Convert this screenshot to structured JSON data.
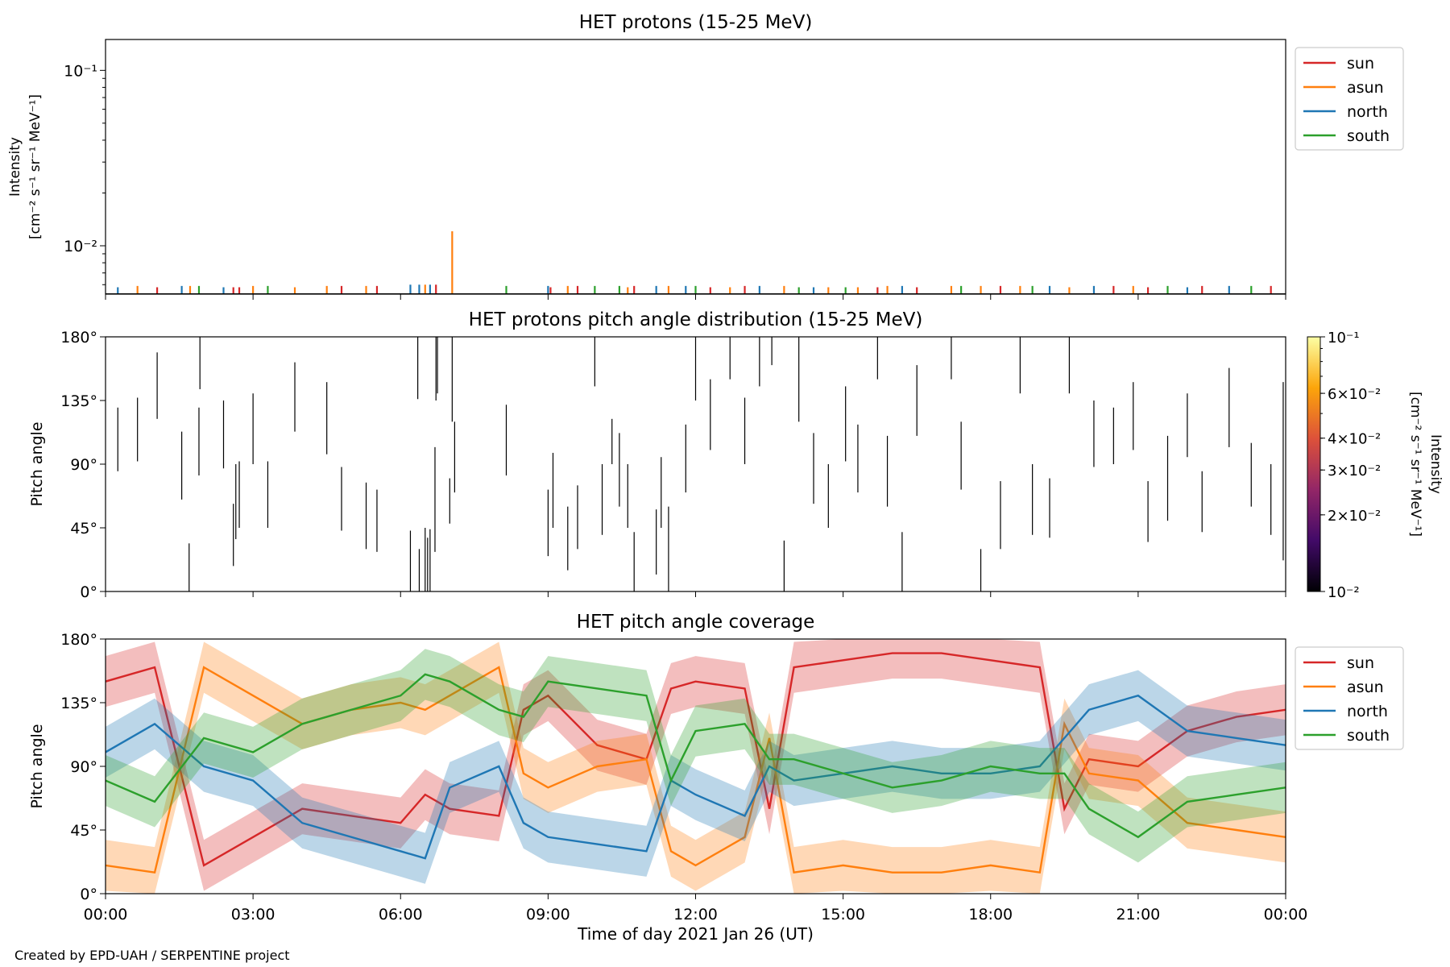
{
  "footer": "Created by EPD-UAH / SERPENTINE project",
  "colors": {
    "sun": "#d62728",
    "asun": "#ff7f0e",
    "north": "#1f77b4",
    "south": "#2ca02c"
  },
  "xaxis": {
    "label": "Time of day 2021 Jan 26 (UT)",
    "tick_labels": [
      "00:00",
      "03:00",
      "06:00",
      "09:00",
      "12:00",
      "15:00",
      "18:00",
      "21:00",
      "00:00"
    ],
    "range_hours": [
      0,
      24
    ]
  },
  "chart_data": [
    {
      "type": "line",
      "title": "HET protons (15-25 MeV)",
      "ylabel_lines": [
        "Intensity",
        "[cm⁻² s⁻¹ sr⁻¹ MeV⁻¹]"
      ],
      "yscale": "log",
      "ylim": [
        0.0053,
        0.15
      ],
      "ytick_labels": [
        {
          "value": 0.1,
          "label": "10⁻¹"
        },
        {
          "value": 0.01,
          "label": "10⁻²"
        }
      ],
      "legend": [
        "sun",
        "asun",
        "north",
        "south"
      ],
      "legend_position": "outside-right-top",
      "baseline": 0.0053,
      "spikes": [
        {
          "series": "north",
          "t": 0.25,
          "v": 0.0058
        },
        {
          "series": "asun",
          "t": 0.65,
          "v": 0.0059
        },
        {
          "series": "red",
          "t": 1.05,
          "v": 0.0058
        },
        {
          "series": "north",
          "t": 1.55,
          "v": 0.0059
        },
        {
          "series": "asun",
          "t": 1.72,
          "v": 0.0059
        },
        {
          "series": "south",
          "t": 1.9,
          "v": 0.0059
        },
        {
          "series": "north",
          "t": 2.4,
          "v": 0.0058
        },
        {
          "series": "sun",
          "t": 2.6,
          "v": 0.0058
        },
        {
          "series": "sun",
          "t": 2.72,
          "v": 0.0058
        },
        {
          "series": "asun",
          "t": 3.0,
          "v": 0.0059
        },
        {
          "series": "south",
          "t": 3.3,
          "v": 0.0059
        },
        {
          "series": "asun",
          "t": 3.85,
          "v": 0.0058
        },
        {
          "series": "asun",
          "t": 4.5,
          "v": 0.0059
        },
        {
          "series": "sun",
          "t": 4.8,
          "v": 0.0059
        },
        {
          "series": "asun",
          "t": 5.3,
          "v": 0.0059
        },
        {
          "series": "sun",
          "t": 5.52,
          "v": 0.0059
        },
        {
          "series": "north",
          "t": 6.2,
          "v": 0.006
        },
        {
          "series": "north",
          "t": 6.38,
          "v": 0.006
        },
        {
          "series": "asun",
          "t": 6.5,
          "v": 0.006
        },
        {
          "series": "north",
          "t": 6.6,
          "v": 0.006
        },
        {
          "series": "sun",
          "t": 6.72,
          "v": 0.006
        },
        {
          "series": "asun",
          "t": 7.05,
          "v": 0.0121
        },
        {
          "series": "south",
          "t": 8.15,
          "v": 0.0059
        },
        {
          "series": "north",
          "t": 9.0,
          "v": 0.0059
        },
        {
          "series": "sun",
          "t": 9.05,
          "v": 0.0058
        },
        {
          "series": "asun",
          "t": 9.4,
          "v": 0.0059
        },
        {
          "series": "sun",
          "t": 9.6,
          "v": 0.0059
        },
        {
          "series": "south",
          "t": 9.95,
          "v": 0.0059
        },
        {
          "series": "south",
          "t": 10.45,
          "v": 0.0059
        },
        {
          "series": "asun",
          "t": 10.62,
          "v": 0.0058
        },
        {
          "series": "sun",
          "t": 10.75,
          "v": 0.0059
        },
        {
          "series": "north",
          "t": 11.2,
          "v": 0.0059
        },
        {
          "series": "asun",
          "t": 11.45,
          "v": 0.0059
        },
        {
          "series": "north",
          "t": 11.8,
          "v": 0.0059
        },
        {
          "series": "south",
          "t": 12.0,
          "v": 0.0059
        },
        {
          "series": "sun",
          "t": 12.3,
          "v": 0.0058
        },
        {
          "series": "asun",
          "t": 12.7,
          "v": 0.0058
        },
        {
          "series": "sun",
          "t": 13.0,
          "v": 0.0059
        },
        {
          "series": "north",
          "t": 13.3,
          "v": 0.0059
        },
        {
          "series": "asun",
          "t": 13.8,
          "v": 0.0059
        },
        {
          "series": "south",
          "t": 14.1,
          "v": 0.0058
        },
        {
          "series": "north",
          "t": 14.4,
          "v": 0.0058
        },
        {
          "series": "asun",
          "t": 14.7,
          "v": 0.0058
        },
        {
          "series": "south",
          "t": 15.05,
          "v": 0.0058
        },
        {
          "series": "asun",
          "t": 15.3,
          "v": 0.0058
        },
        {
          "series": "sun",
          "t": 15.7,
          "v": 0.0058
        },
        {
          "series": "asun",
          "t": 15.9,
          "v": 0.0059
        },
        {
          "series": "north",
          "t": 16.2,
          "v": 0.0059
        },
        {
          "series": "sun",
          "t": 16.5,
          "v": 0.0058
        },
        {
          "series": "asun",
          "t": 17.2,
          "v": 0.0059
        },
        {
          "series": "south",
          "t": 17.4,
          "v": 0.0059
        },
        {
          "series": "asun",
          "t": 17.8,
          "v": 0.0059
        },
        {
          "series": "sun",
          "t": 18.2,
          "v": 0.0059
        },
        {
          "series": "asun",
          "t": 18.6,
          "v": 0.0059
        },
        {
          "series": "south",
          "t": 18.85,
          "v": 0.0059
        },
        {
          "series": "north",
          "t": 19.2,
          "v": 0.0059
        },
        {
          "series": "asun",
          "t": 19.6,
          "v": 0.0058
        },
        {
          "series": "north",
          "t": 20.1,
          "v": 0.0059
        },
        {
          "series": "sun",
          "t": 20.5,
          "v": 0.0059
        },
        {
          "series": "asun",
          "t": 20.9,
          "v": 0.0059
        },
        {
          "series": "sun",
          "t": 21.2,
          "v": 0.0058
        },
        {
          "series": "south",
          "t": 21.6,
          "v": 0.0059
        },
        {
          "series": "north",
          "t": 22.0,
          "v": 0.0058
        },
        {
          "series": "sun",
          "t": 22.3,
          "v": 0.0059
        },
        {
          "series": "north",
          "t": 22.85,
          "v": 0.0059
        },
        {
          "series": "south",
          "t": 23.3,
          "v": 0.0059
        },
        {
          "series": "sun",
          "t": 23.7,
          "v": 0.0059
        }
      ]
    },
    {
      "type": "heatmap",
      "title": "HET protons pitch angle distribution (15-25 MeV)",
      "ylabel": "Pitch angle",
      "ylim": [
        0,
        180
      ],
      "ytick_labels": [
        "0°",
        "45°",
        "90°",
        "135°",
        "180°"
      ],
      "colorbar": {
        "label_lines": [
          "Intensity",
          "[cm⁻² s⁻¹ sr⁻¹ MeV⁻¹]"
        ],
        "scale": "log",
        "range": [
          0.01,
          0.1
        ],
        "tick_labels": [
          {
            "value": 0.1,
            "label": "10⁻¹"
          },
          {
            "value": 0.06,
            "label": "6×10⁻²"
          },
          {
            "value": 0.04,
            "label": "4×10⁻²"
          },
          {
            "value": 0.03,
            "label": "3×10⁻²"
          },
          {
            "value": 0.02,
            "label": "2×10⁻²"
          },
          {
            "value": 0.01,
            "label": "10⁻²"
          }
        ]
      },
      "segments": [
        [
          0.25,
          85,
          130
        ],
        [
          0.65,
          92,
          137
        ],
        [
          1.05,
          122,
          169
        ],
        [
          1.7,
          0,
          34
        ],
        [
          1.55,
          65,
          113
        ],
        [
          1.9,
          82,
          130
        ],
        [
          1.92,
          143,
          180
        ],
        [
          2.4,
          87,
          135
        ],
        [
          2.6,
          18,
          62
        ],
        [
          2.65,
          37,
          90
        ],
        [
          2.72,
          45,
          92
        ],
        [
          3.0,
          90,
          140
        ],
        [
          3.3,
          45,
          92
        ],
        [
          3.85,
          113,
          162
        ],
        [
          4.5,
          97,
          148
        ],
        [
          4.8,
          43,
          88
        ],
        [
          5.3,
          30,
          77
        ],
        [
          5.52,
          28,
          72
        ],
        [
          6.2,
          0,
          43
        ],
        [
          6.35,
          136,
          180
        ],
        [
          6.38,
          0,
          30
        ],
        [
          6.5,
          0,
          45
        ],
        [
          6.55,
          0,
          38
        ],
        [
          6.6,
          0,
          44
        ],
        [
          6.72,
          135,
          180
        ],
        [
          6.7,
          28,
          102
        ],
        [
          6.75,
          140,
          180
        ],
        [
          7.05,
          120,
          180
        ],
        [
          7.1,
          70,
          120
        ],
        [
          7.0,
          48,
          80
        ],
        [
          8.15,
          82,
          132
        ],
        [
          9.0,
          25,
          72
        ],
        [
          9.1,
          45,
          98
        ],
        [
          9.4,
          15,
          60
        ],
        [
          9.6,
          30,
          75
        ],
        [
          9.95,
          145,
          180
        ],
        [
          10.1,
          40,
          90
        ],
        [
          10.3,
          90,
          122
        ],
        [
          10.45,
          60,
          112
        ],
        [
          10.62,
          45,
          90
        ],
        [
          10.75,
          0,
          42
        ],
        [
          11.2,
          12,
          58
        ],
        [
          11.3,
          45,
          95
        ],
        [
          11.45,
          0,
          60
        ],
        [
          11.8,
          70,
          118
        ],
        [
          12.0,
          135,
          180
        ],
        [
          12.3,
          100,
          150
        ],
        [
          12.7,
          150,
          180
        ],
        [
          13.0,
          90,
          137
        ],
        [
          13.3,
          145,
          180
        ],
        [
          13.55,
          160,
          180
        ],
        [
          13.8,
          0,
          36
        ],
        [
          14.1,
          120,
          180
        ],
        [
          14.4,
          62,
          112
        ],
        [
          14.7,
          45,
          90
        ],
        [
          15.05,
          92,
          145
        ],
        [
          15.3,
          70,
          118
        ],
        [
          15.7,
          150,
          180
        ],
        [
          15.9,
          60,
          110
        ],
        [
          16.2,
          0,
          42
        ],
        [
          16.5,
          110,
          160
        ],
        [
          17.2,
          150,
          180
        ],
        [
          17.4,
          72,
          120
        ],
        [
          17.8,
          0,
          30
        ],
        [
          18.2,
          30,
          78
        ],
        [
          18.6,
          140,
          180
        ],
        [
          18.85,
          40,
          90
        ],
        [
          19.2,
          38,
          80
        ],
        [
          19.6,
          140,
          180
        ],
        [
          20.1,
          88,
          135
        ],
        [
          20.5,
          90,
          130
        ],
        [
          20.9,
          100,
          148
        ],
        [
          21.2,
          35,
          78
        ],
        [
          21.6,
          50,
          110
        ],
        [
          22.0,
          95,
          140
        ],
        [
          22.3,
          42,
          85
        ],
        [
          22.85,
          102,
          158
        ],
        [
          23.3,
          60,
          105
        ],
        [
          23.7,
          40,
          90
        ],
        [
          23.95,
          22,
          148
        ]
      ]
    },
    {
      "type": "area",
      "title": "HET pitch angle coverage",
      "ylabel": "Pitch angle",
      "ylim": [
        0,
        180
      ],
      "ytick_labels": [
        "0°",
        "45°",
        "90°",
        "135°",
        "180°"
      ],
      "legend": [
        "sun",
        "asun",
        "north",
        "south"
      ],
      "legend_position": "outside-right-top",
      "band_halfwidth_deg": 18,
      "x_hours": [
        0,
        1,
        2,
        3,
        4,
        5,
        6,
        6.5,
        7,
        8,
        8.5,
        9,
        10,
        11,
        11.5,
        12,
        13,
        13.5,
        14,
        15,
        16,
        17,
        18,
        19,
        19.5,
        20,
        21,
        22,
        23,
        24
      ],
      "series": [
        {
          "name": "sun",
          "values": [
            150,
            160,
            20,
            40,
            60,
            55,
            50,
            70,
            60,
            55,
            130,
            140,
            105,
            95,
            145,
            150,
            145,
            60,
            160,
            165,
            170,
            170,
            165,
            160,
            60,
            95,
            90,
            115,
            125,
            130
          ]
        },
        {
          "name": "asun",
          "values": [
            20,
            15,
            160,
            140,
            120,
            130,
            135,
            130,
            140,
            160,
            85,
            75,
            90,
            95,
            30,
            20,
            40,
            110,
            15,
            20,
            15,
            15,
            20,
            15,
            120,
            85,
            80,
            50,
            45,
            40
          ]
        },
        {
          "name": "north",
          "values": [
            100,
            120,
            90,
            80,
            50,
            40,
            30,
            25,
            75,
            90,
            50,
            40,
            35,
            30,
            80,
            70,
            55,
            90,
            80,
            85,
            90,
            85,
            85,
            90,
            110,
            130,
            140,
            115,
            110,
            105
          ]
        },
        {
          "name": "south",
          "values": [
            80,
            65,
            110,
            100,
            120,
            130,
            140,
            155,
            150,
            130,
            125,
            150,
            145,
            140,
            80,
            115,
            120,
            95,
            95,
            85,
            75,
            80,
            90,
            85,
            85,
            60,
            40,
            65,
            70,
            75
          ]
        }
      ]
    }
  ]
}
